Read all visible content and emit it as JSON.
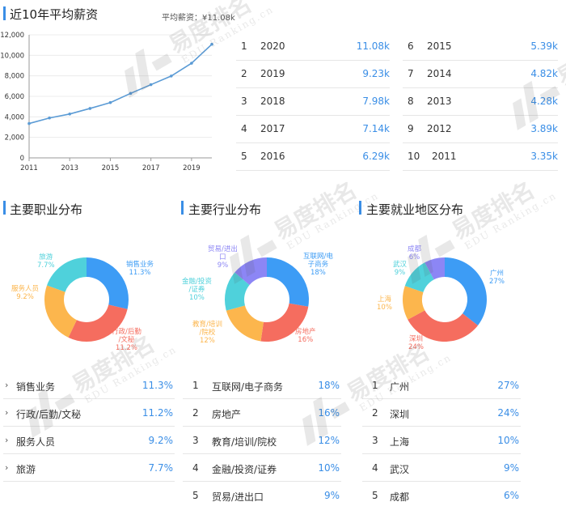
{
  "salary": {
    "title": "近10年平均薪资",
    "avg_label": "平均薪资：¥11.08k"
  },
  "chart_data": {
    "type": "line",
    "x": [
      2011,
      2012,
      2013,
      2014,
      2015,
      2016,
      2017,
      2018,
      2019,
      2020
    ],
    "y": [
      3350,
      3890,
      4280,
      4820,
      5390,
      6290,
      7140,
      7980,
      9230,
      11080
    ],
    "x_ticks": [
      "2011",
      "2013",
      "2015",
      "2017",
      "2019"
    ],
    "y_ticks": [
      "0",
      "2,000",
      "4,000",
      "6,000",
      "8,000",
      "10,000",
      "12,000"
    ],
    "ylim": [
      0,
      12000
    ],
    "line_color": "#5b9bd5"
  },
  "year_table": {
    "left": [
      {
        "rank": "1",
        "year": "2020",
        "value": "11.08k"
      },
      {
        "rank": "2",
        "year": "2019",
        "value": "9.23k"
      },
      {
        "rank": "3",
        "year": "2018",
        "value": "7.98k"
      },
      {
        "rank": "4",
        "year": "2017",
        "value": "7.14k"
      },
      {
        "rank": "5",
        "year": "2016",
        "value": "6.29k"
      }
    ],
    "right": [
      {
        "rank": "6",
        "year": "2015",
        "value": "5.39k"
      },
      {
        "rank": "7",
        "year": "2014",
        "value": "4.82k"
      },
      {
        "rank": "8",
        "year": "2013",
        "value": "4.28k"
      },
      {
        "rank": "9",
        "year": "2012",
        "value": "3.89k"
      },
      {
        "rank": "10",
        "year": "2011",
        "value": "3.35k"
      }
    ]
  },
  "occupation": {
    "title": "主要职业分布",
    "slices": [
      {
        "label": "销售业务",
        "pct_text": "11.3%",
        "value": 11.3,
        "color": "#3d9cf5",
        "label_lines": [
          "销售业务",
          "11.3%"
        ]
      },
      {
        "label": "行政/后勤/文秘",
        "pct_text": "11.2%",
        "value": 11.2,
        "color": "#f56d5f",
        "label_lines": [
          "行政/后勤",
          "/文秘",
          "11.2%"
        ]
      },
      {
        "label": "服务人员",
        "pct_text": "9.2%",
        "value": 9.2,
        "color": "#fcb64d",
        "label_lines": [
          "服务人员",
          "9.2%"
        ]
      },
      {
        "label": "旅游",
        "pct_text": "7.7%",
        "value": 7.7,
        "color": "#4fd1db",
        "label_lines": [
          "旅游",
          "7.7%"
        ]
      }
    ],
    "list": [
      {
        "arrow": "›",
        "label": "销售业务",
        "value": "11.3%"
      },
      {
        "arrow": "›",
        "label": "行政/后勤/文秘",
        "value": "11.2%"
      },
      {
        "arrow": "›",
        "label": "服务人员",
        "value": "9.2%"
      },
      {
        "arrow": "›",
        "label": "旅游",
        "value": "7.7%"
      }
    ]
  },
  "industry": {
    "title": "主要行业分布",
    "slices": [
      {
        "label": "互联网/电子商务",
        "pct_text": "18%",
        "value": 18,
        "color": "#3d9cf5",
        "label_lines": [
          "互联网/电",
          "子商务",
          "18%"
        ]
      },
      {
        "label": "房地产",
        "pct_text": "16%",
        "value": 16,
        "color": "#f56d5f",
        "label_lines": [
          "房地产",
          "16%"
        ]
      },
      {
        "label": "教育/培训/院校",
        "pct_text": "12%",
        "value": 12,
        "color": "#fcb64d",
        "label_lines": [
          "教育/培训",
          "/院校",
          "12%"
        ]
      },
      {
        "label": "金融/投资/证券",
        "pct_text": "10%",
        "value": 10,
        "color": "#4fd1db",
        "label_lines": [
          "金融/投资",
          "/证券",
          "10%"
        ]
      },
      {
        "label": "贸易/进出口",
        "pct_text": "9%",
        "value": 9,
        "color": "#8c86f5",
        "label_lines": [
          "贸易/进出",
          "口",
          "9%"
        ]
      }
    ],
    "list": [
      {
        "rank": "1",
        "label": "互联网/电子商务",
        "value": "18%"
      },
      {
        "rank": "2",
        "label": "房地产",
        "value": "16%"
      },
      {
        "rank": "3",
        "label": "教育/培训/院校",
        "value": "12%"
      },
      {
        "rank": "4",
        "label": "金融/投资/证券",
        "value": "10%"
      },
      {
        "rank": "5",
        "label": "贸易/进出口",
        "value": "9%"
      }
    ]
  },
  "region": {
    "title": "主要就业地区分布",
    "slices": [
      {
        "label": "广州",
        "pct_text": "27%",
        "value": 27,
        "color": "#3d9cf5",
        "label_lines": [
          "广州",
          "27%"
        ]
      },
      {
        "label": "深圳",
        "pct_text": "24%",
        "value": 24,
        "color": "#f56d5f",
        "label_lines": [
          "深圳",
          "24%"
        ]
      },
      {
        "label": "上海",
        "pct_text": "10%",
        "value": 10,
        "color": "#fcb64d",
        "label_lines": [
          "上海",
          "10%"
        ]
      },
      {
        "label": "武汉",
        "pct_text": "9%",
        "value": 9,
        "color": "#4fd1db",
        "label_lines": [
          "武汉",
          "9%"
        ]
      },
      {
        "label": "成都",
        "pct_text": "6%",
        "value": 6,
        "color": "#8c86f5",
        "label_lines": [
          "成都",
          "6%"
        ]
      }
    ],
    "list": [
      {
        "rank": "1",
        "label": "广州",
        "value": "27%"
      },
      {
        "rank": "2",
        "label": "深圳",
        "value": "24%"
      },
      {
        "rank": "3",
        "label": "上海",
        "value": "10%"
      },
      {
        "rank": "4",
        "label": "武汉",
        "value": "9%"
      },
      {
        "rank": "5",
        "label": "成都",
        "value": "6%"
      }
    ]
  },
  "watermark": {
    "brand": "易度排名",
    "url": "EDU Ranking.cn"
  }
}
